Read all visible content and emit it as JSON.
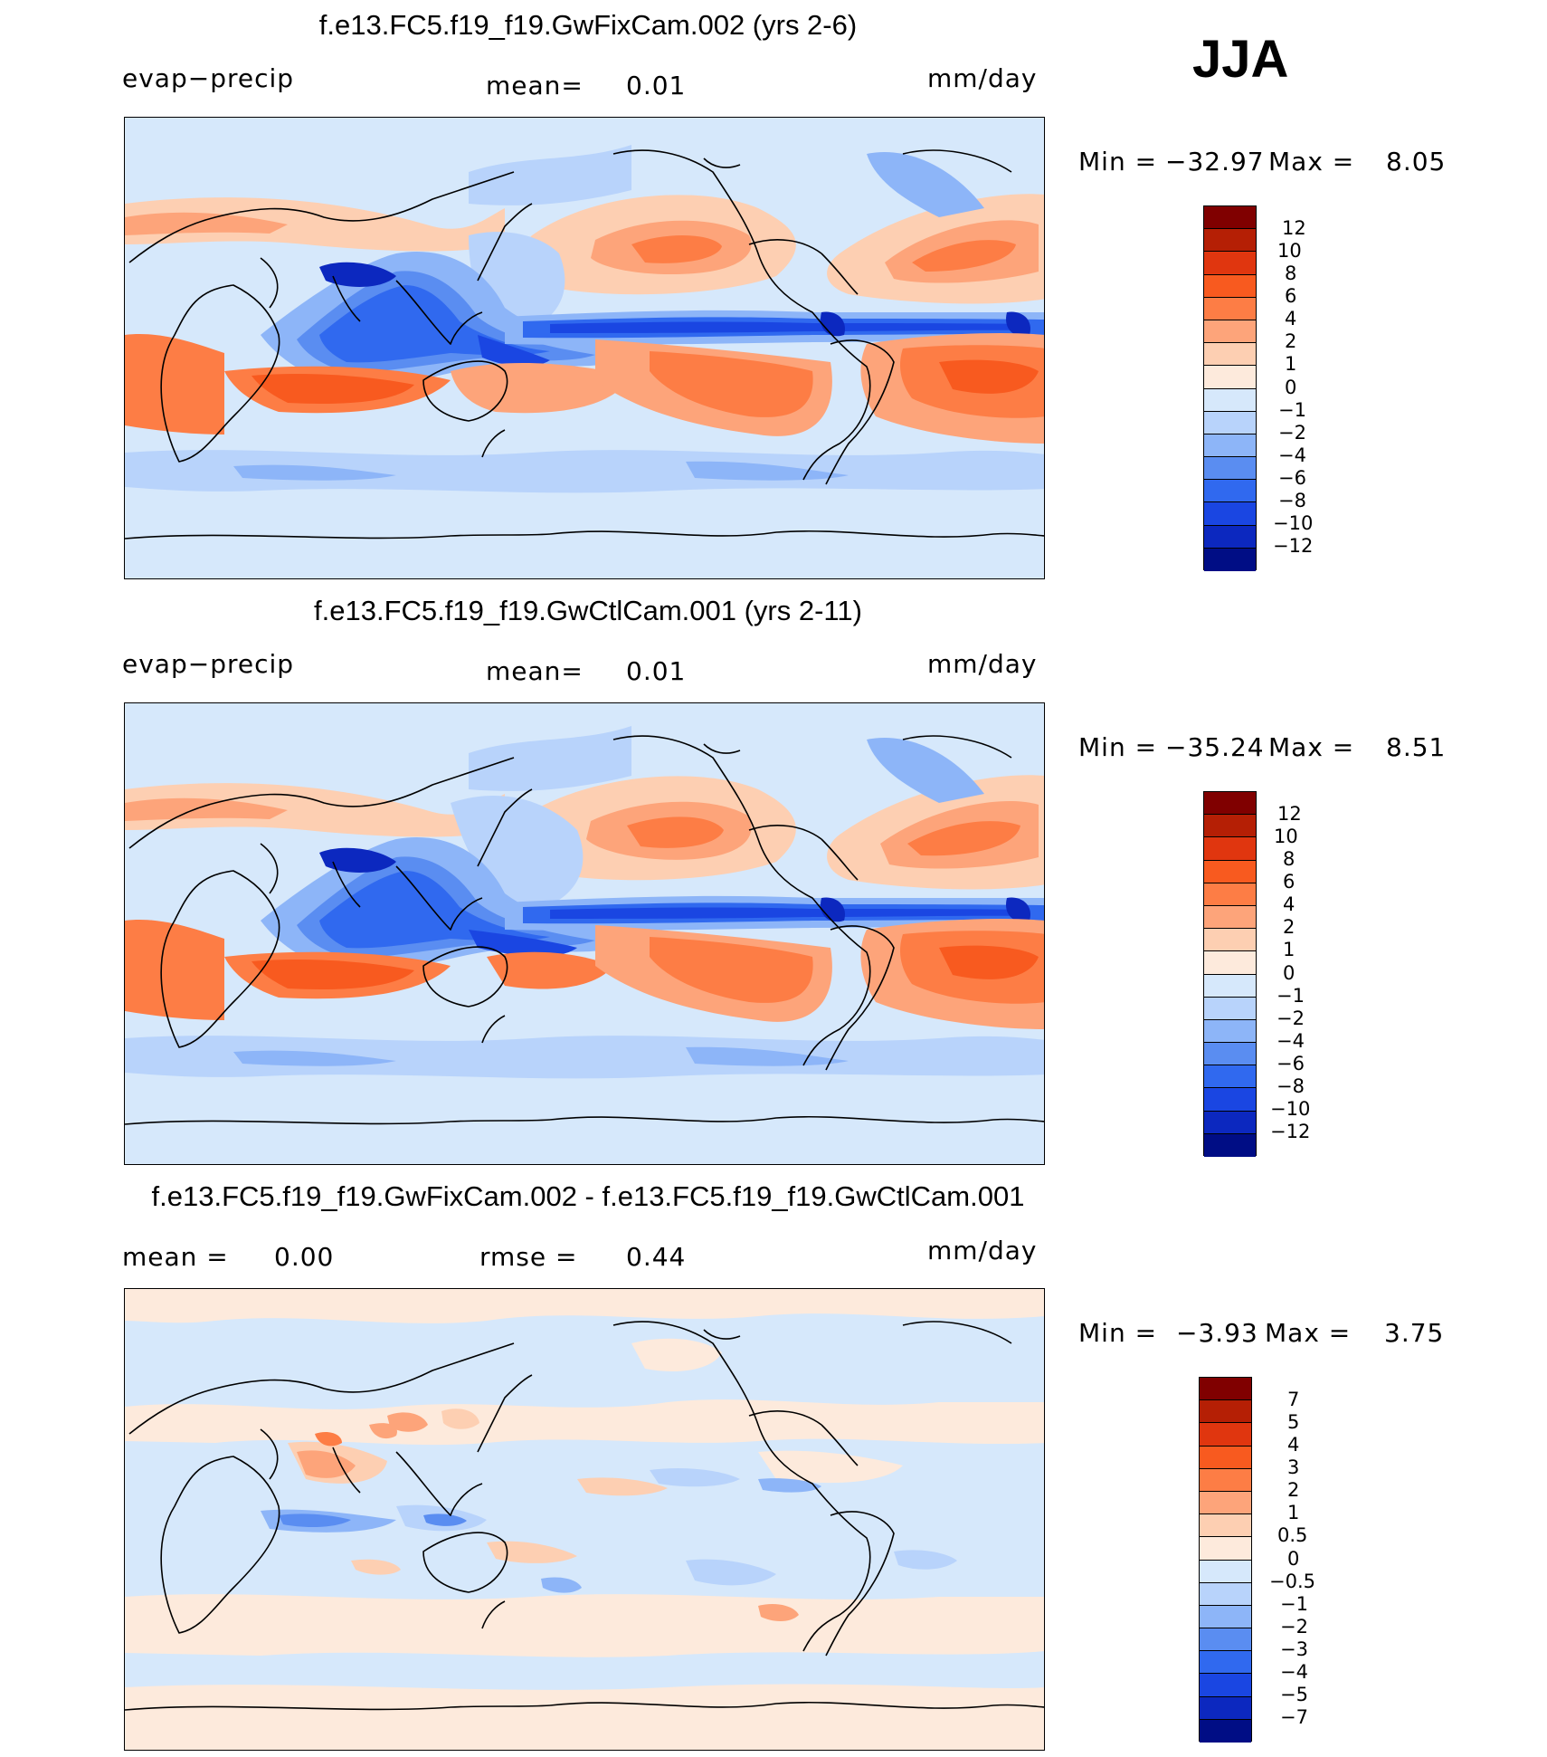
{
  "season": "JJA",
  "panels": [
    {
      "title": "f.e13.FC5.f19_f19.GwFixCam.002 (yrs 2-6)",
      "variable": "evap−precip",
      "mean_label": "mean=",
      "mean_value": "0.01",
      "units": "mm/day",
      "min_label": "Min  =",
      "min_value": "−32.97",
      "max_label": "Max  =",
      "max_value": "8.05",
      "colorbar_ticks": [
        "12",
        "10",
        "8",
        "6",
        "4",
        "2",
        "1",
        "0",
        "−1",
        "−2",
        "−4",
        "−6",
        "−8",
        "−10",
        "−12"
      ]
    },
    {
      "title": "f.e13.FC5.f19_f19.GwCtlCam.001 (yrs 2-11)",
      "variable": "evap−precip",
      "mean_label": "mean=",
      "mean_value": "0.01",
      "units": "mm/day",
      "min_label": "Min  =",
      "min_value": "−35.24",
      "max_label": "Max  =",
      "max_value": "8.51",
      "colorbar_ticks": [
        "12",
        "10",
        "8",
        "6",
        "4",
        "2",
        "1",
        "0",
        "−1",
        "−2",
        "−4",
        "−6",
        "−8",
        "−10",
        "−12"
      ]
    },
    {
      "title": "f.e13.FC5.f19_f19.GwFixCam.002 - f.e13.FC5.f19_f19.GwCtlCam.001",
      "mean_label": "mean  =",
      "mean_value": "0.00",
      "rmse_label": "rmse  =",
      "rmse_value": "0.44",
      "units": "mm/day",
      "min_label": "Min  =",
      "min_value": "−3.93",
      "max_label": "Max  =",
      "max_value": "3.75",
      "colorbar_ticks": [
        "7",
        "5",
        "4",
        "3",
        "2",
        "1",
        "0.5",
        "0",
        "−0.5",
        "−1",
        "−2",
        "−3",
        "−4",
        "−5",
        "−7"
      ]
    }
  ],
  "colors": {
    "main_scale": [
      "#800000",
      "#b51f05",
      "#e0360f",
      "#f85a1f",
      "#fd7d45",
      "#fda47a",
      "#fdcfb2",
      "#fdeadc",
      "#d6e8fb",
      "#b8d3fb",
      "#8db5f8",
      "#5a8df1",
      "#3069ef",
      "#1a46e2",
      "#0c28bf",
      "#000d85"
    ],
    "diff_scale": [
      "#800000",
      "#b51f05",
      "#e0360f",
      "#f85a1f",
      "#fd7d45",
      "#fda47a",
      "#fdcfb2",
      "#fdeadc",
      "#d6e8fb",
      "#b8d3fb",
      "#8db5f8",
      "#5a8df1",
      "#3069ef",
      "#1a46e2",
      "#0c28bf",
      "#000d85"
    ],
    "coastline": "#000000"
  }
}
